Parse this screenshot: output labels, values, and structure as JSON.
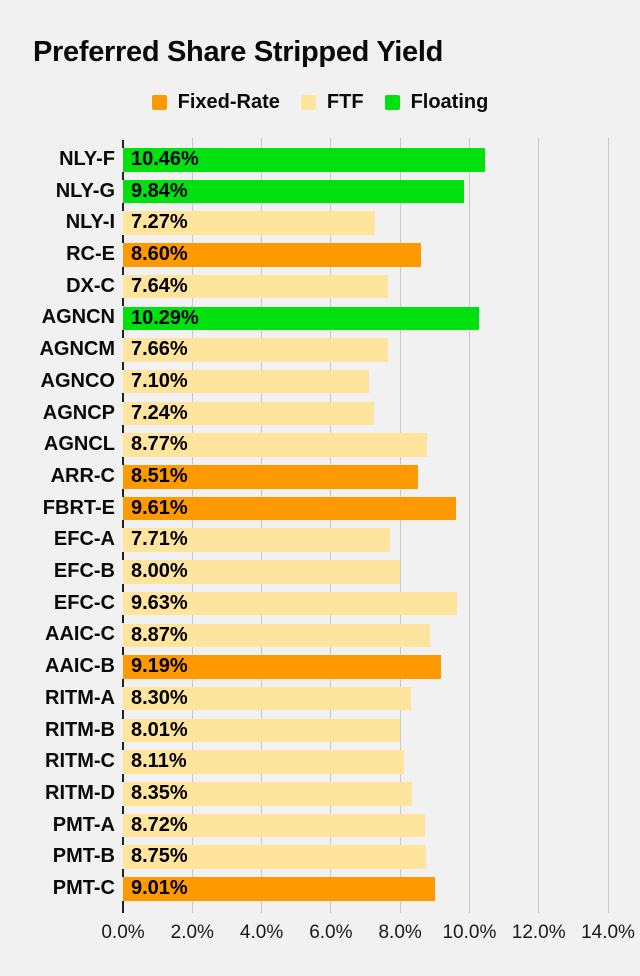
{
  "page": {
    "background_color": "#f1f1f1"
  },
  "header": {
    "title": "Preferred Share Stripped Yield"
  },
  "legend": {
    "items": [
      {
        "label": "Fixed-Rate",
        "key": "fixed",
        "color": "#ff9900"
      },
      {
        "label": "FTF",
        "key": "ftf",
        "color": "#ffe49d"
      },
      {
        "label": "Floating",
        "key": "floating",
        "color": "#00e10f"
      }
    ]
  },
  "chart_data": {
    "type": "bar",
    "orientation": "horizontal",
    "title": "Preferred Share Stripped Yield",
    "xlabel": "",
    "ylabel": "",
    "xlim": [
      0,
      14
    ],
    "grid": true,
    "legend_position": "top-center",
    "gridline_color": "#c9c9c9",
    "series_colors": {
      "fixed": "#ff9900",
      "ftf": "#ffe49d",
      "floating": "#00e10f"
    },
    "x_ticks": [
      {
        "value": 0,
        "label": "0.0%"
      },
      {
        "value": 2,
        "label": "2.0%"
      },
      {
        "value": 4,
        "label": "4.0%"
      },
      {
        "value": 6,
        "label": "6.0%"
      },
      {
        "value": 8,
        "label": "8.0%"
      },
      {
        "value": 10,
        "label": "10.0%"
      },
      {
        "value": 12,
        "label": "12.0%"
      },
      {
        "value": 14,
        "label": "14.0%"
      }
    ],
    "bars": [
      {
        "label": "NLY-F",
        "value": 10.46,
        "display": "10.46%",
        "type": "floating"
      },
      {
        "label": "NLY-G",
        "value": 9.84,
        "display": "9.84%",
        "type": "floating"
      },
      {
        "label": "NLY-I",
        "value": 7.27,
        "display": "7.27%",
        "type": "ftf"
      },
      {
        "label": "RC-E",
        "value": 8.6,
        "display": "8.60%",
        "type": "fixed"
      },
      {
        "label": "DX-C",
        "value": 7.64,
        "display": "7.64%",
        "type": "ftf"
      },
      {
        "label": "AGNCN",
        "value": 10.29,
        "display": "10.29%",
        "type": "floating"
      },
      {
        "label": "AGNCM",
        "value": 7.66,
        "display": "7.66%",
        "type": "ftf"
      },
      {
        "label": "AGNCO",
        "value": 7.1,
        "display": "7.10%",
        "type": "ftf"
      },
      {
        "label": "AGNCP",
        "value": 7.24,
        "display": "7.24%",
        "type": "ftf"
      },
      {
        "label": "AGNCL",
        "value": 8.77,
        "display": "8.77%",
        "type": "ftf"
      },
      {
        "label": "ARR-C",
        "value": 8.51,
        "display": "8.51%",
        "type": "fixed"
      },
      {
        "label": "FBRT-E",
        "value": 9.61,
        "display": "9.61%",
        "type": "fixed"
      },
      {
        "label": "EFC-A",
        "value": 7.71,
        "display": "7.71%",
        "type": "ftf"
      },
      {
        "label": "EFC-B",
        "value": 8.0,
        "display": "8.00%",
        "type": "ftf"
      },
      {
        "label": "EFC-C",
        "value": 9.63,
        "display": "9.63%",
        "type": "ftf"
      },
      {
        "label": "AAIC-C",
        "value": 8.87,
        "display": "8.87%",
        "type": "ftf"
      },
      {
        "label": "AAIC-B",
        "value": 9.19,
        "display": "9.19%",
        "type": "fixed"
      },
      {
        "label": "RITM-A",
        "value": 8.3,
        "display": "8.30%",
        "type": "ftf"
      },
      {
        "label": "RITM-B",
        "value": 8.01,
        "display": "8.01%",
        "type": "ftf"
      },
      {
        "label": "RITM-C",
        "value": 8.11,
        "display": "8.11%",
        "type": "ftf"
      },
      {
        "label": "RITM-D",
        "value": 8.35,
        "display": "8.35%",
        "type": "ftf"
      },
      {
        "label": "PMT-A",
        "value": 8.72,
        "display": "8.72%",
        "type": "ftf"
      },
      {
        "label": "PMT-B",
        "value": 8.75,
        "display": "8.75%",
        "type": "ftf"
      },
      {
        "label": "PMT-C",
        "value": 9.01,
        "display": "9.01%",
        "type": "fixed"
      }
    ]
  }
}
